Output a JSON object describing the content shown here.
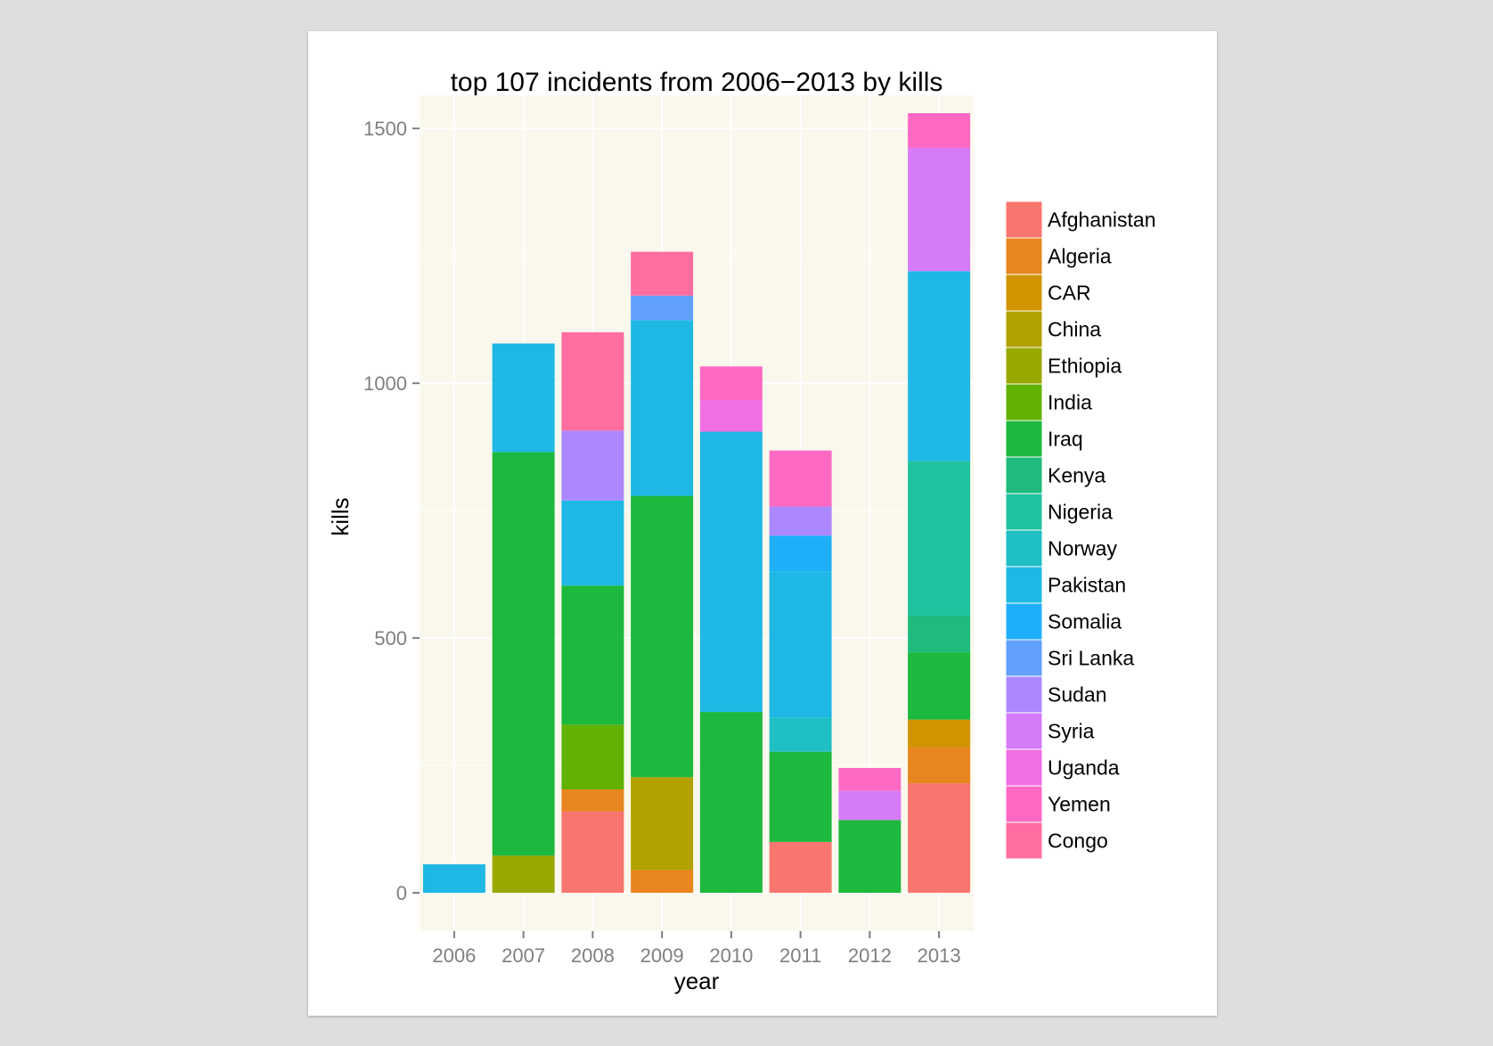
{
  "chart_data": {
    "type": "bar",
    "stacked": true,
    "title": "top 107 incidents from 2006−2013 by kills",
    "xlabel": "year",
    "ylabel": "kills",
    "ylim": [
      -75,
      1565
    ],
    "yticks": [
      0,
      500,
      1000,
      1500
    ],
    "categories": [
      "2006",
      "2007",
      "2008",
      "2009",
      "2010",
      "2011",
      "2012",
      "2013"
    ],
    "legend_position": "right",
    "series": [
      {
        "name": "Afghanistan",
        "color": "#F8766D",
        "values": [
          0,
          0,
          160,
          0,
          0,
          100,
          0,
          215
        ]
      },
      {
        "name": "Algeria",
        "color": "#E7851E",
        "values": [
          0,
          0,
          43,
          45,
          0,
          0,
          0,
          70
        ]
      },
      {
        "name": "CAR",
        "color": "#D09400",
        "values": [
          0,
          0,
          0,
          0,
          0,
          0,
          0,
          55
        ]
      },
      {
        "name": "China",
        "color": "#B2A100",
        "values": [
          0,
          0,
          0,
          182,
          0,
          0,
          0,
          0
        ]
      },
      {
        "name": "Ethiopia",
        "color": "#99A800",
        "values": [
          0,
          73,
          0,
          0,
          0,
          0,
          0,
          0
        ]
      },
      {
        "name": "India",
        "color": "#61B200",
        "values": [
          0,
          0,
          127,
          0,
          0,
          0,
          0,
          0
        ]
      },
      {
        "name": "Iraq",
        "color": "#1DB83E",
        "values": [
          0,
          792,
          273,
          552,
          355,
          177,
          143,
          132
        ]
      },
      {
        "name": "Kenya",
        "color": "#1FBB7C",
        "values": [
          0,
          0,
          0,
          0,
          0,
          0,
          0,
          72
        ]
      },
      {
        "name": "Nigeria",
        "color": "#1FC19E",
        "values": [
          0,
          0,
          0,
          0,
          0,
          0,
          0,
          303
        ]
      },
      {
        "name": "Norway",
        "color": "#20BFC4",
        "values": [
          0,
          0,
          0,
          0,
          0,
          67,
          0,
          0
        ]
      },
      {
        "name": "Pakistan",
        "color": "#1FB8E5",
        "values": [
          56,
          213,
          167,
          345,
          550,
          287,
          0,
          373
        ]
      },
      {
        "name": "Somalia",
        "color": "#1FAFF9",
        "values": [
          0,
          0,
          0,
          0,
          0,
          70,
          0,
          0
        ]
      },
      {
        "name": "Sri Lanka",
        "color": "#61A0FF",
        "values": [
          0,
          0,
          0,
          48,
          0,
          0,
          0,
          0
        ]
      },
      {
        "name": "Sudan",
        "color": "#AC88FF",
        "values": [
          0,
          0,
          137,
          0,
          0,
          57,
          0,
          0
        ]
      },
      {
        "name": "Syria",
        "color": "#D57BF8",
        "values": [
          0,
          0,
          0,
          0,
          0,
          0,
          57,
          242
        ]
      },
      {
        "name": "Uganda",
        "color": "#F16EE3",
        "values": [
          0,
          0,
          0,
          0,
          62,
          0,
          0,
          0
        ]
      },
      {
        "name": "Yemen",
        "color": "#FE69C4",
        "values": [
          0,
          0,
          0,
          0,
          66,
          110,
          45,
          68
        ]
      },
      {
        "name": "Congo",
        "color": "#FF6DA1",
        "values": [
          0,
          0,
          193,
          86,
          0,
          0,
          0,
          0
        ]
      }
    ]
  }
}
